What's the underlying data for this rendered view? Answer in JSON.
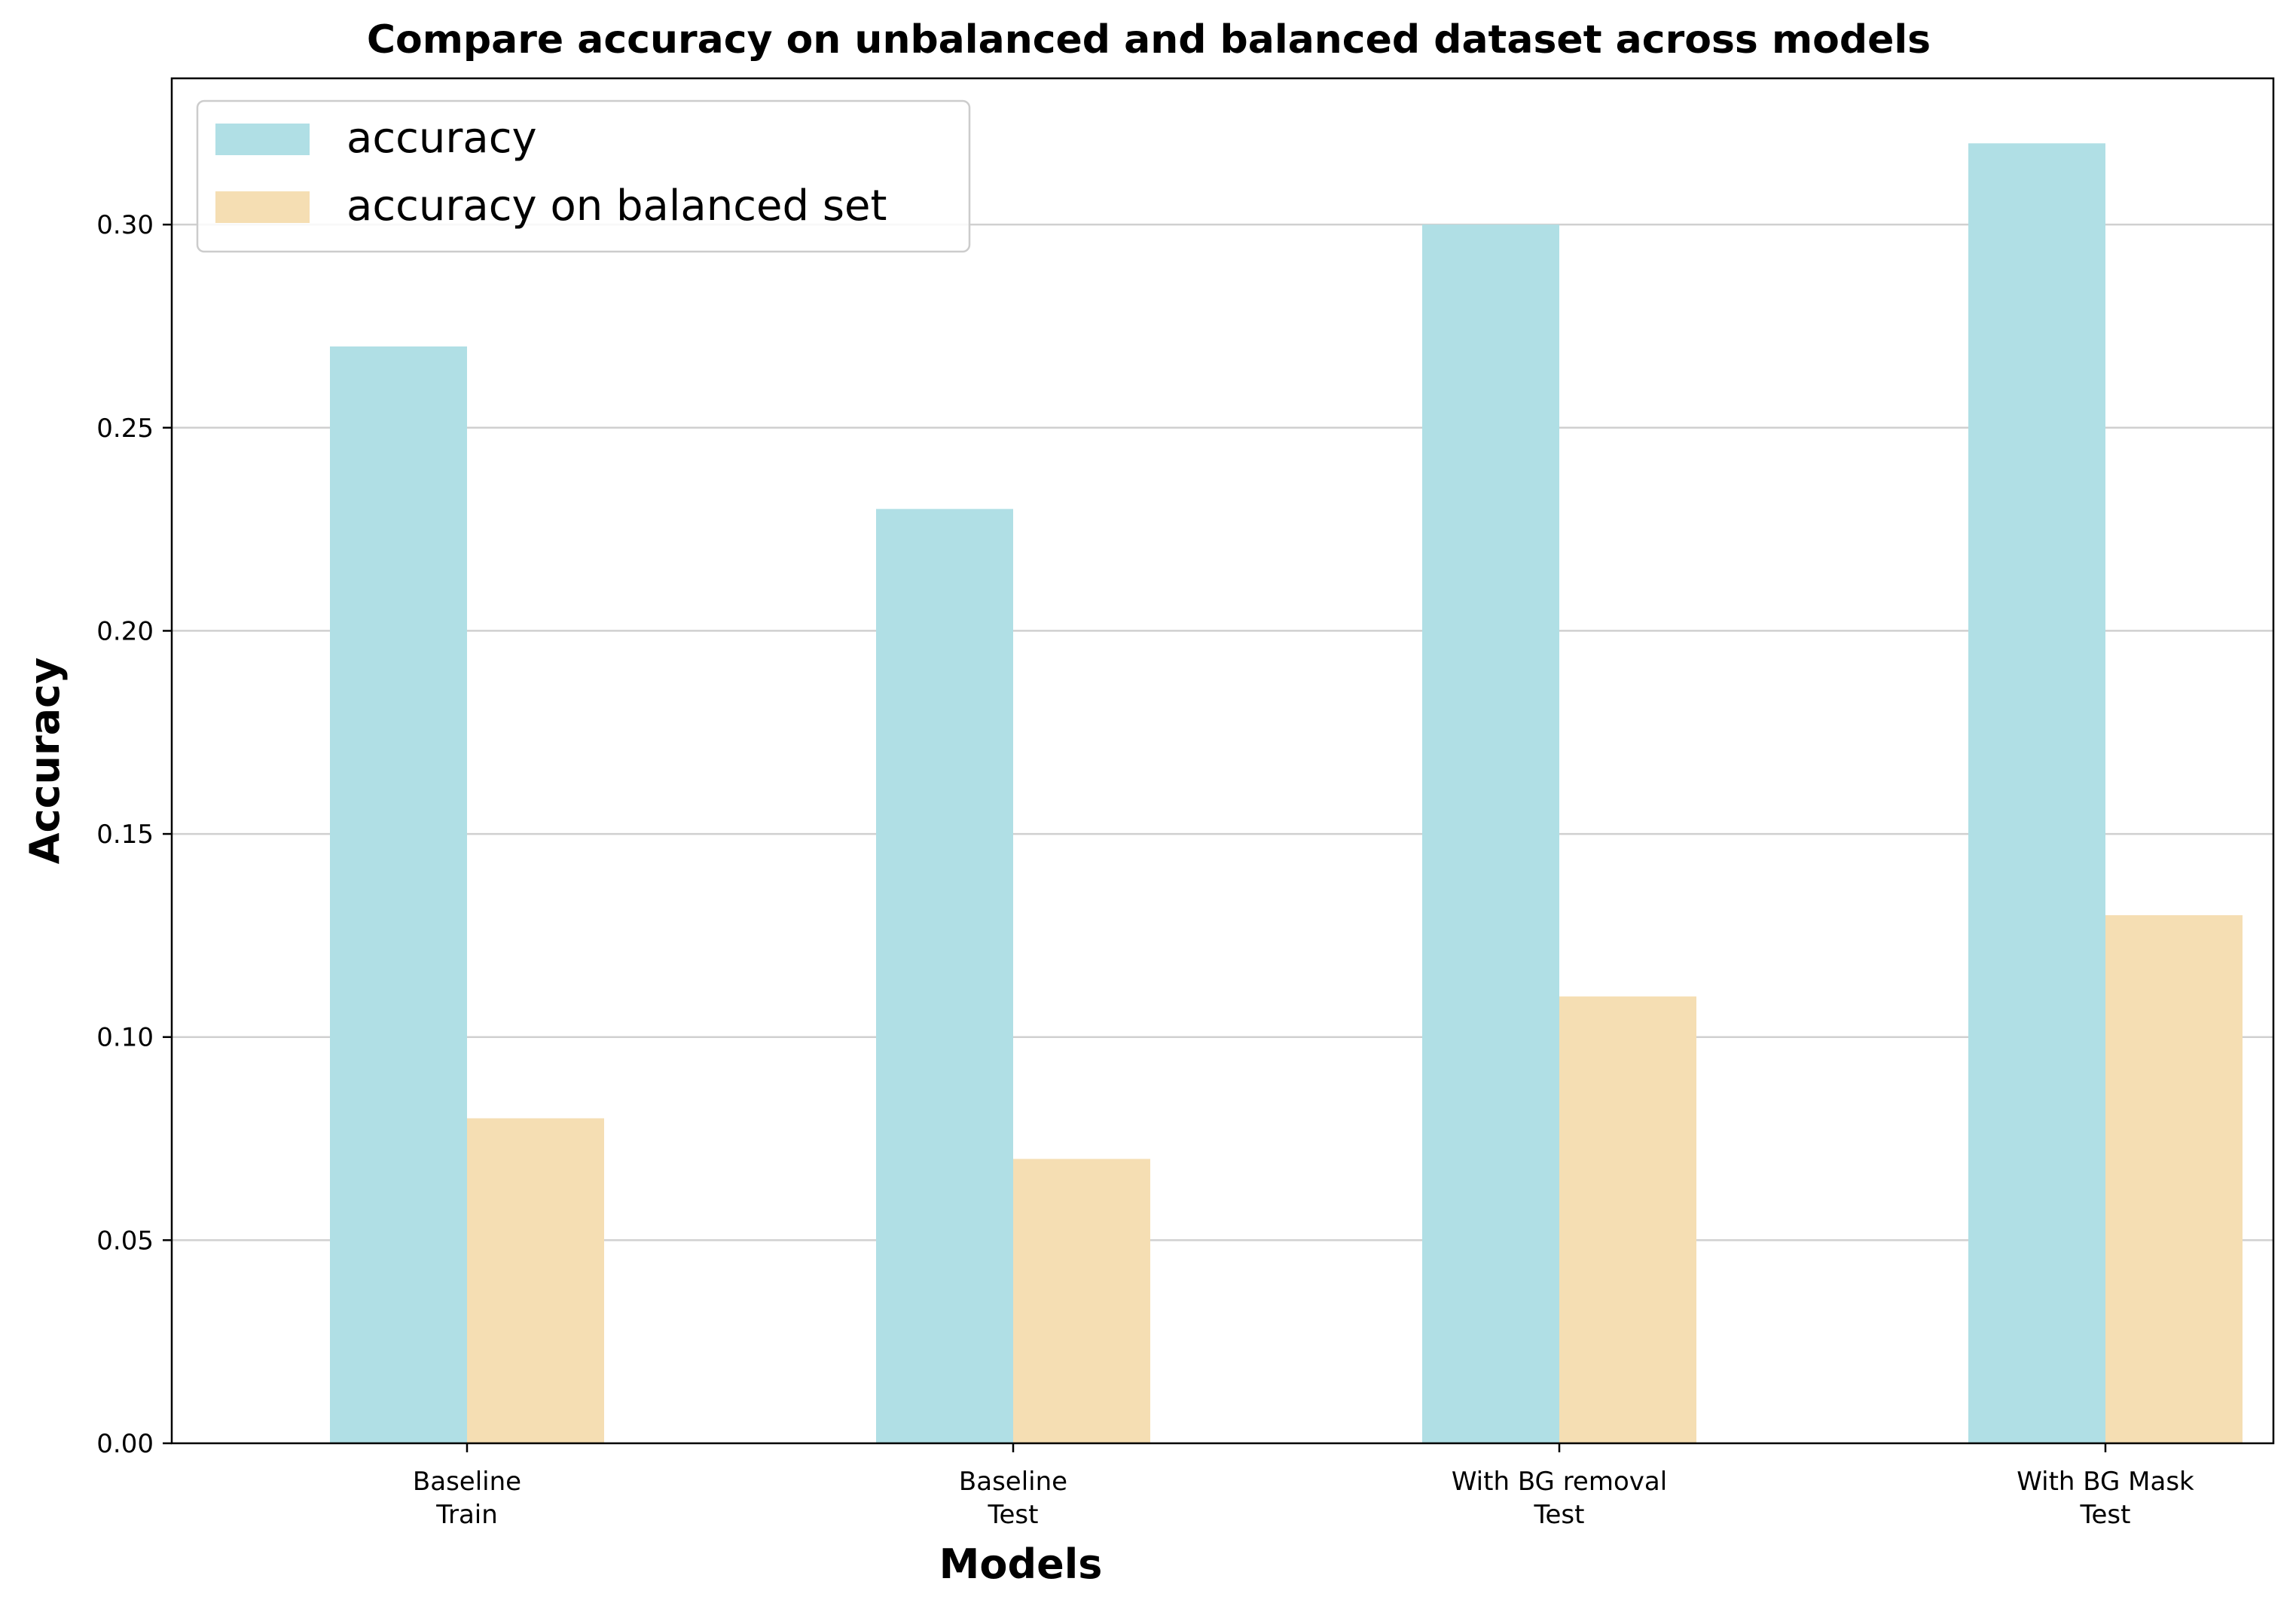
{
  "chart_data": {
    "type": "bar",
    "title": "Compare accuracy on unbalanced and balanced dataset across models",
    "xlabel": "Models",
    "ylabel": "Accuracy",
    "categories": [
      [
        "Baseline",
        "Train"
      ],
      [
        "Baseline",
        "Test"
      ],
      [
        "With BG removal",
        "Test"
      ],
      [
        "With BG Mask",
        "Test"
      ]
    ],
    "series": [
      {
        "name": "accuracy",
        "color": "#b0dfe5",
        "values": [
          0.27,
          0.23,
          0.3,
          0.32
        ]
      },
      {
        "name": "accuracy on balanced set",
        "color": "#f5deb3",
        "values": [
          0.08,
          0.07,
          0.11,
          0.13
        ]
      }
    ],
    "ylim": [
      0,
      0.336
    ],
    "yticks": [
      "0.00",
      "0.05",
      "0.10",
      "0.15",
      "0.20",
      "0.25",
      "0.30"
    ],
    "grid": "y",
    "legend_position": "top-left"
  }
}
